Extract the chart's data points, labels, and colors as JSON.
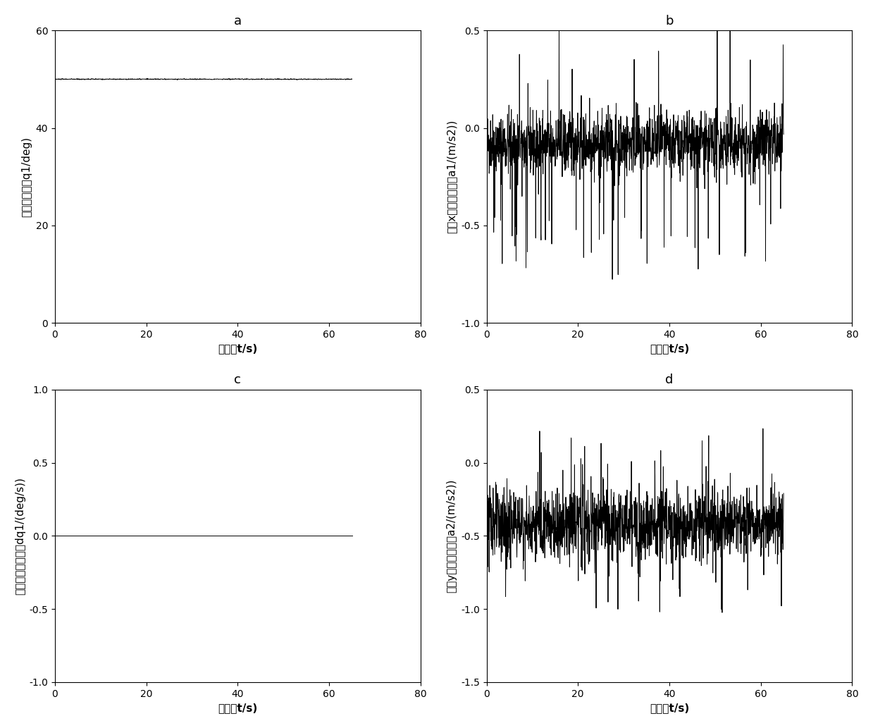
{
  "subplot_a": {
    "title": "a",
    "ylabel": "车架航向角（q1/deg)",
    "xlabel": "时间（t/s)",
    "xlim": [
      0,
      80
    ],
    "ylim": [
      0,
      60
    ],
    "yticks": [
      0,
      20,
      40,
      60
    ],
    "xticks": [
      0,
      20,
      40,
      60,
      80
    ],
    "line_value": 50.0,
    "line_color": "#000000"
  },
  "subplot_b": {
    "title": "b",
    "ylabel": "车架x雑线加速度（a1/(m/s2))",
    "xlabel": "时间（t/s)",
    "xlim": [
      0,
      80
    ],
    "ylim": [
      -1,
      0.5
    ],
    "yticks": [
      -1,
      -0.5,
      0,
      0.5
    ],
    "xticks": [
      0,
      20,
      40,
      60,
      80
    ],
    "noise_seed": 42,
    "noise_mean": -0.08,
    "noise_std": 0.08,
    "spike_amplitude": 0.65,
    "line_color": "#000000"
  },
  "subplot_c": {
    "title": "c",
    "ylabel": "车架航向角速度（dq1/(deg/s))",
    "xlabel": "时间（t/s)",
    "xlim": [
      0,
      80
    ],
    "ylim": [
      -1,
      1
    ],
    "yticks": [
      -1,
      -0.5,
      0,
      0.5,
      1
    ],
    "xticks": [
      0,
      20,
      40,
      60,
      80
    ],
    "line_value": 0.0,
    "line_color": "#000000"
  },
  "subplot_d": {
    "title": "d",
    "ylabel": "车架y雑线加速度（a2/(m/s2))",
    "xlabel": "时间（t/s)",
    "xlim": [
      0,
      80
    ],
    "ylim": [
      -1.5,
      0.5
    ],
    "yticks": [
      -1.5,
      -1,
      -0.5,
      0,
      0.5
    ],
    "xticks": [
      0,
      20,
      40,
      60,
      80
    ],
    "noise_seed": 123,
    "noise_mean": -0.42,
    "noise_std": 0.12,
    "spike_amplitude": 0.55,
    "line_color": "#000000"
  },
  "figure_bgcolor": "#ffffff",
  "axes_bgcolor": "#ffffff",
  "line_width": 0.7,
  "font_size_title": 13,
  "font_size_label": 11,
  "font_size_tick": 10
}
